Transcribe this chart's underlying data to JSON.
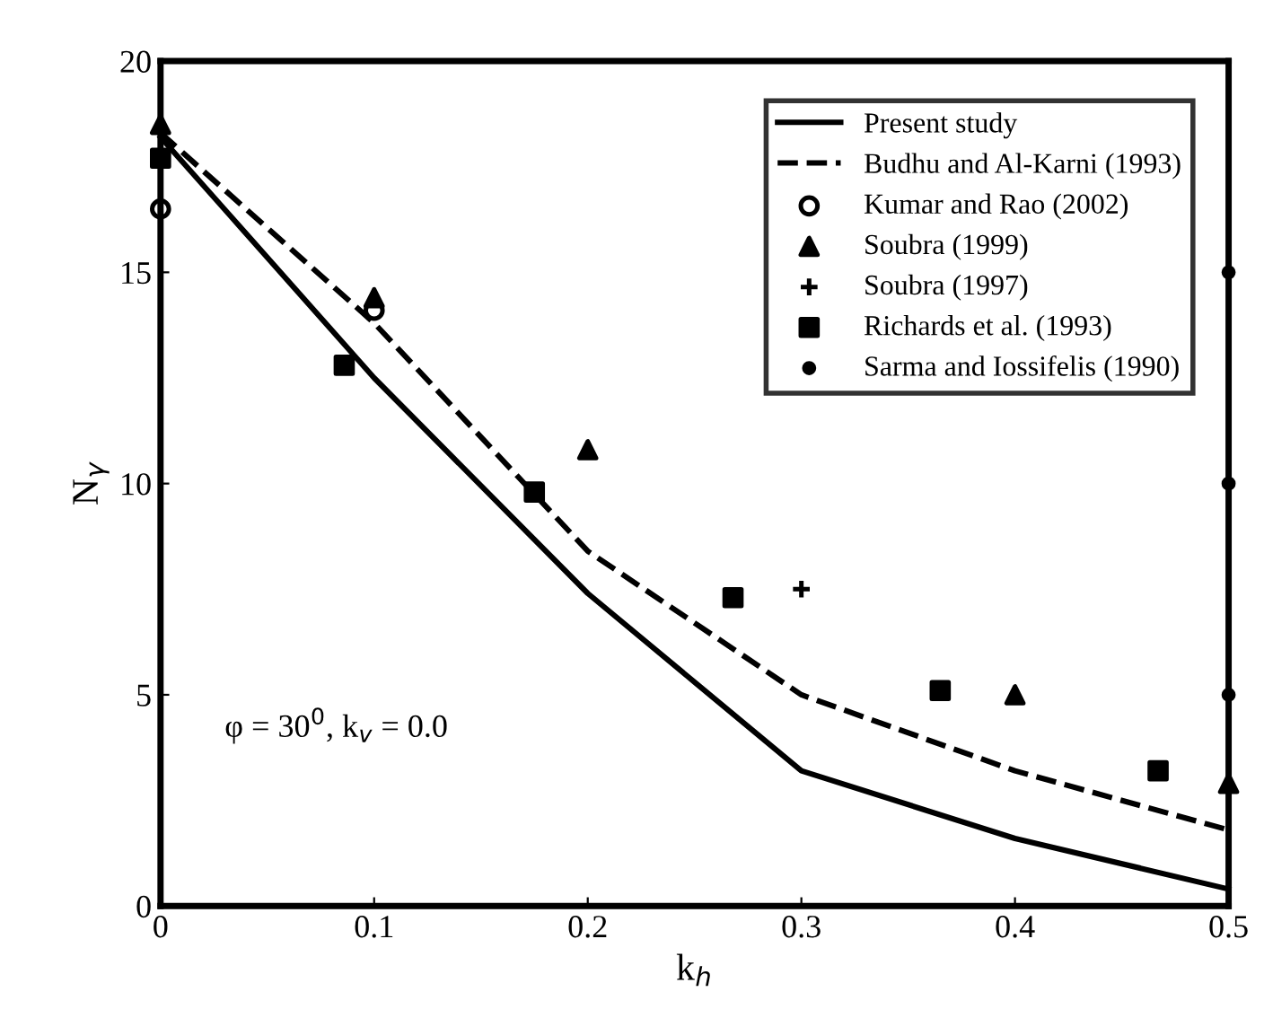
{
  "chart_data": {
    "type": "line",
    "xlabel": "k$_{h}$",
    "ylabel": "N$_{γ}$",
    "xlim": [
      0,
      0.5
    ],
    "ylim": [
      0,
      20
    ],
    "xticks": [
      0,
      0.1,
      0.2,
      0.3,
      0.4,
      0.5
    ],
    "yticks": [
      0,
      5,
      10,
      15,
      20
    ],
    "grid": false,
    "legend": "top right",
    "annotations": [
      {
        "text": "φ = 30$^{0}$, k$_{v}$ = 0.0"
      }
    ],
    "series": [
      {
        "name": "Present study",
        "color": "#000000",
        "line_style": "solid",
        "marker": "none",
        "x": [
          0,
          0.1,
          0.2,
          0.25,
          0.3,
          0.4,
          0.5
        ],
        "values": [
          18.2,
          12.5,
          7.4,
          5.3,
          3.2,
          1.6,
          0.4
        ]
      },
      {
        "name": "Budhu and Al-Karni (1993)",
        "color": "#000000",
        "line_style": "dashed",
        "marker": "none",
        "x": [
          0,
          0.1,
          0.2,
          0.3,
          0.4,
          0.5
        ],
        "values": [
          18.3,
          13.8,
          8.4,
          5.0,
          3.2,
          1.8
        ]
      },
      {
        "name": "Kumar and Rao (2002)",
        "type": "scatter",
        "color": "#000000",
        "marker": "circle",
        "x": [
          0,
          0.1
        ],
        "values": [
          16.5,
          14.1
        ]
      },
      {
        "name": "Soubra (1999)",
        "type": "scatter",
        "color": "#000000",
        "marker": "triangle",
        "x": [
          0,
          0.1,
          0.2,
          0.4,
          0.5
        ],
        "values": [
          18.5,
          14.4,
          10.8,
          5.0,
          2.9
        ]
      },
      {
        "name": "Soubra (1997)",
        "type": "scatter",
        "color": "#000000",
        "marker": "cross",
        "x": [
          0.3
        ],
        "values": [
          7.5
        ]
      },
      {
        "name": "Richards et al. (1993)",
        "type": "scatter",
        "color": "#000000",
        "marker": "square",
        "x": [
          0,
          0.086,
          0.175,
          0.268,
          0.365,
          0.467
        ],
        "values": [
          17.7,
          12.8,
          9.8,
          7.3,
          5.1,
          3.2
        ]
      },
      {
        "name": "Sarma and Iossifelis (1990)",
        "type": "scatter",
        "color": "#000000",
        "marker": "circle_small",
        "x": [
          0.5,
          0.5,
          0.5
        ],
        "values": [
          15.0,
          10.0,
          5.0
        ]
      }
    ]
  }
}
